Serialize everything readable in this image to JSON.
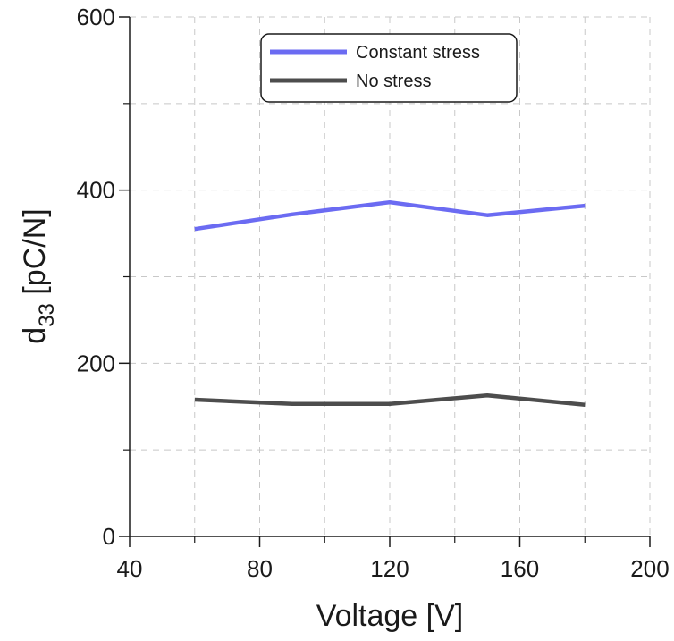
{
  "chart_data": {
    "type": "line",
    "xlabel": "Voltage [V]",
    "ylabel_main": "d",
    "ylabel_sub": "33",
    "ylabel_unit": " [pC/N]",
    "xlim": [
      40,
      200
    ],
    "ylim": [
      0,
      600
    ],
    "x_ticks": [
      40,
      80,
      120,
      160,
      200
    ],
    "x_minor_ticks": [
      60,
      100,
      140,
      180
    ],
    "y_ticks": [
      0,
      200,
      400,
      600
    ],
    "y_minor_ticks": [
      100,
      300,
      500
    ],
    "grid": true,
    "legend_position": "top-center",
    "x": [
      60,
      90,
      120,
      150,
      180
    ],
    "series": [
      {
        "name": "Constant stress",
        "color": "#6B6BF2",
        "values": [
          355,
          372,
          386,
          371,
          382
        ]
      },
      {
        "name": "No stress",
        "color": "#4D4D4D",
        "values": [
          158,
          153,
          153,
          163,
          152
        ]
      }
    ]
  }
}
